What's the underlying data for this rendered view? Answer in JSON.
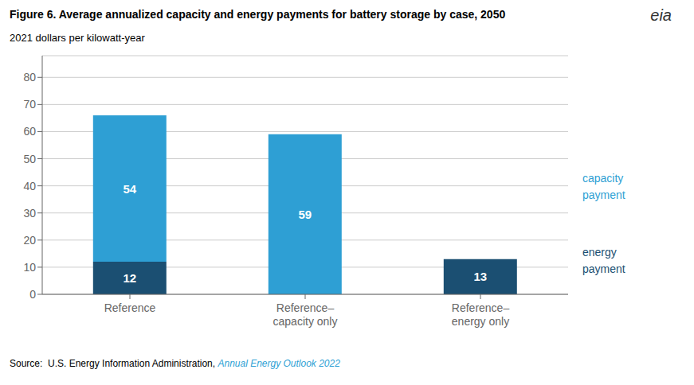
{
  "chart_data": {
    "type": "bar",
    "stacked": true,
    "title": "Figure 6. Average annualized capacity and energy payments for battery storage by case, 2050",
    "y_label": "2021 dollars per kilowatt-year",
    "categories": [
      "Reference",
      "Reference–\ncapacity only",
      "Reference–\nenergy only"
    ],
    "series": [
      {
        "name": "energy\npayment",
        "color": "#1b4f72",
        "values": [
          12,
          0,
          13
        ]
      },
      {
        "name": "capacity\npayment",
        "color": "#2e9fd4",
        "values": [
          54,
          59,
          0
        ]
      }
    ],
    "ylim": [
      0,
      88
    ],
    "yticks": [
      0,
      10,
      20,
      30,
      40,
      50,
      60,
      70,
      80
    ],
    "grid": true,
    "data_labels": true,
    "source": "Source:  U.S. Energy Information Administration, ",
    "source_link": "Annual Energy Outlook 2022",
    "logo": "eia"
  }
}
